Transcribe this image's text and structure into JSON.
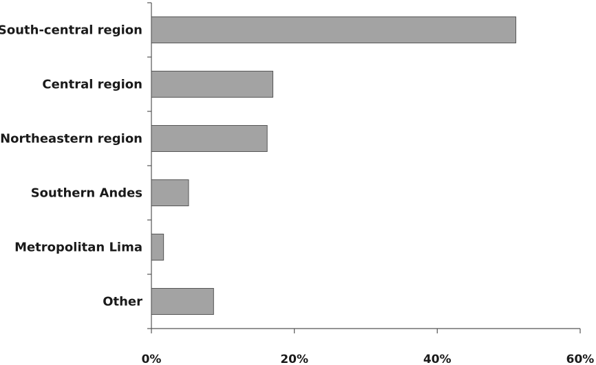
{
  "chart_data": {
    "type": "bar",
    "orientation": "horizontal",
    "categories": [
      "South-central region",
      "Central region",
      "Northeastern region",
      "Southern Andes",
      "Metropolitan Lima",
      "Other"
    ],
    "values": [
      51,
      17,
      16.2,
      5.2,
      1.7,
      8.7
    ],
    "xlim": [
      0,
      60
    ],
    "xticks": [
      0,
      20,
      40,
      60
    ],
    "xtick_labels": [
      "0%",
      "20%",
      "40%",
      "60%"
    ],
    "bar_color": "#a3a3a3",
    "bar_edge_color": "#555555",
    "grid": false,
    "title": "",
    "xlabel": "",
    "ylabel": ""
  }
}
